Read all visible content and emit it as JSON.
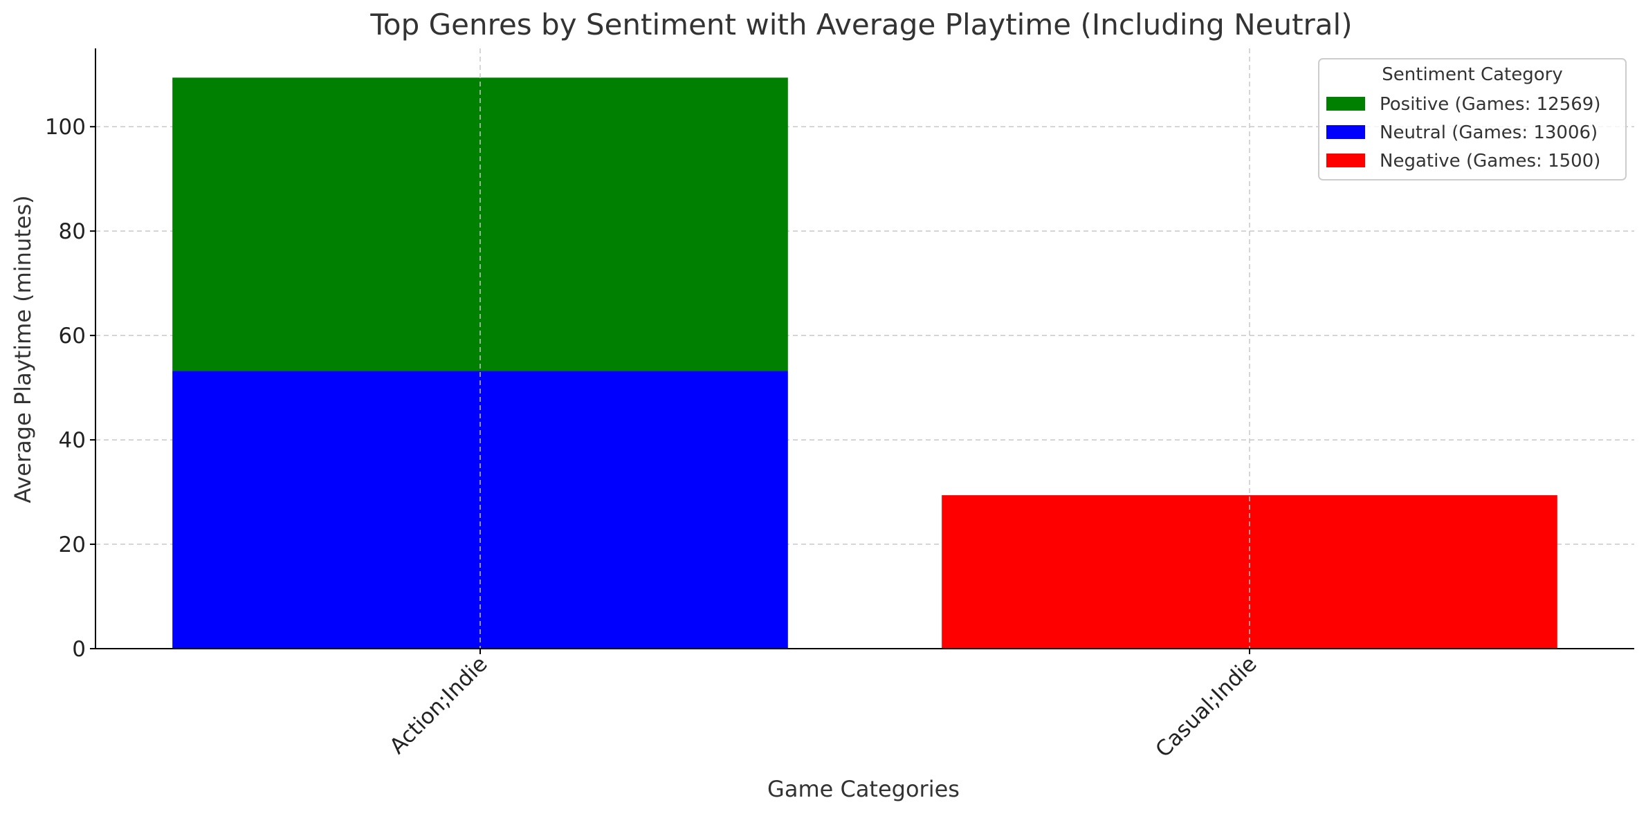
{
  "chart_data": {
    "type": "bar",
    "stacked": true,
    "title": "Top Genres by Sentiment with Average Playtime (Including Neutral)",
    "xlabel": "Game Categories",
    "ylabel": "Average Playtime (minutes)",
    "ylim": [
      0,
      115
    ],
    "yticks": [
      0,
      20,
      40,
      60,
      80,
      100
    ],
    "categories": [
      "Action;Indie",
      "Casual;Indie"
    ],
    "series": [
      {
        "name": "Positive (Games: 12569)",
        "color": "#008000",
        "values": [
          56.2,
          0
        ]
      },
      {
        "name": "Neutral (Games: 13006)",
        "color": "#0000ff",
        "values": [
          53.2,
          0
        ]
      },
      {
        "name": "Negative (Games: 1500)",
        "color": "#ff0000",
        "values": [
          0,
          29.4
        ]
      }
    ],
    "stack_order": [
      "Neutral (Games: 13006)",
      "Positive (Games: 12569)",
      "Negative (Games: 1500)"
    ],
    "grid": true,
    "legend": {
      "title": "Sentiment Category",
      "placement": "top-right"
    }
  }
}
